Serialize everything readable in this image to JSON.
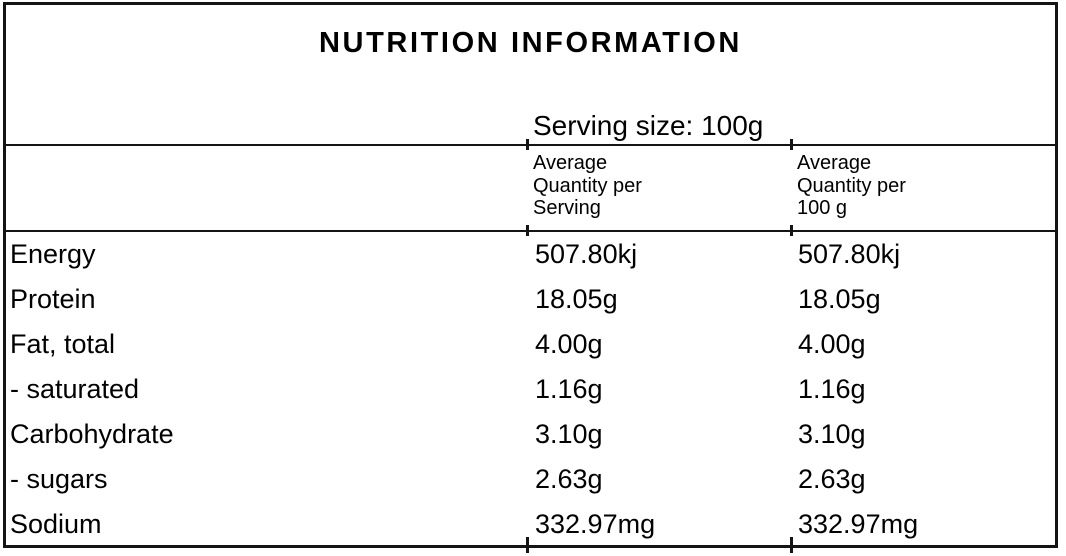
{
  "label": {
    "title": "NUTRITION INFORMATION",
    "serving_size": "Serving size: 100g"
  },
  "table": {
    "columns": {
      "per_serving_header": "Average\nQuantity per\nServing",
      "per_100g_header": "Average\nQuantity per\n100 g"
    },
    "rows": [
      {
        "nutrient": "Energy",
        "per_serving": "507.80kj",
        "per_100g": "507.80kj"
      },
      {
        "nutrient": "Protein",
        "per_serving": "18.05g",
        "per_100g": "18.05g"
      },
      {
        "nutrient": "Fat, total",
        "per_serving": "4.00g",
        "per_100g": "4.00g"
      },
      {
        "nutrient": "- saturated",
        "per_serving": "1.16g",
        "per_100g": "1.16g"
      },
      {
        "nutrient": "Carbohydrate",
        "per_serving": "3.10g",
        "per_100g": "3.10g"
      },
      {
        "nutrient": "- sugars",
        "per_serving": "2.63g",
        "per_100g": "2.63g"
      },
      {
        "nutrient": "Sodium",
        "per_serving": "332.97mg",
        "per_100g": "332.97mg"
      }
    ]
  },
  "colors": {
    "border": "#141414",
    "text": "#000000",
    "background": "#ffffff"
  }
}
